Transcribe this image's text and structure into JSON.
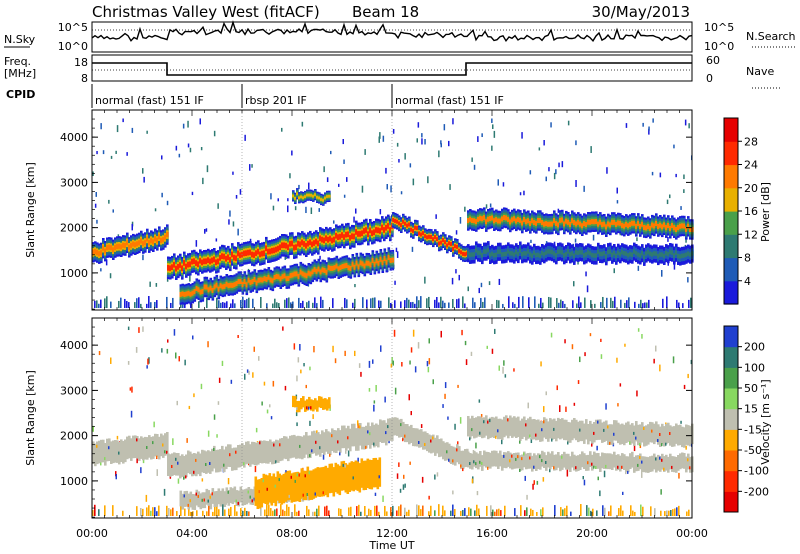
{
  "header": {
    "title": "Christmas Valley West (fitACF)",
    "beam": "Beam 18",
    "date": "30/May/2013"
  },
  "nsky_panel": {
    "left_label": "N.Sky",
    "right_label": "N.Search",
    "left_ticks": [
      "10^5",
      "10^0"
    ],
    "right_ticks": [
      "10^5",
      "10^0"
    ]
  },
  "freq_panel": {
    "left_label_line1": "Freq.",
    "left_label_line2": "[MHz]",
    "right_label": "Nave",
    "left_ticks": [
      "18",
      "8"
    ],
    "right_ticks": [
      "60",
      "0"
    ]
  },
  "cpid_panel": {
    "label": "CPID",
    "modes": [
      {
        "name": "normal (fast) 151 IF",
        "start_hour": 0,
        "end_hour": 6
      },
      {
        "name": "rbsp 201 IF",
        "start_hour": 6,
        "end_hour": 12
      },
      {
        "name": "normal (fast) 151 IF",
        "start_hour": 12,
        "end_hour": 24
      }
    ]
  },
  "chart_data": [
    {
      "type": "heatmap",
      "panel": "power",
      "ylabel": "Slant Range [km]",
      "xlim": [
        0,
        24
      ],
      "ylim": [
        180,
        4600
      ],
      "yticks": [
        "1000",
        "2000",
        "3000",
        "4000"
      ],
      "colorbar_label": "Power [dB]",
      "colorbar_ticks": [
        "4",
        "8",
        "12",
        "16",
        "20",
        "24",
        "28"
      ],
      "colors": [
        "#1a1adb",
        "#1f5bb6",
        "#2e7a72",
        "#4aa04a",
        "#e8b000",
        "#ff7a00",
        "#ff2a00",
        "#e60000"
      ],
      "bands": [
        {
          "t0": 0.0,
          "t1": 3.0,
          "r_start": 1450,
          "r_end": 1800,
          "width": 450,
          "level": 0.7
        },
        {
          "t0": 3.0,
          "t1": 12.0,
          "r_start": 1100,
          "r_end": 2000,
          "width": 500,
          "level": 0.85
        },
        {
          "t0": 3.5,
          "t1": 12.0,
          "r_start": 550,
          "r_end": 1300,
          "width": 450,
          "level": 0.65
        },
        {
          "t0": 8.0,
          "t1": 9.5,
          "r_start": 2700,
          "r_end": 2650,
          "width": 250,
          "level": 0.6
        },
        {
          "t0": 12.0,
          "t1": 15.0,
          "r_start": 2200,
          "r_end": 1400,
          "width": 350,
          "level": 0.8
        },
        {
          "t0": 15.0,
          "t1": 24.0,
          "r_start": 2200,
          "r_end": 2000,
          "width": 450,
          "level": 0.65
        },
        {
          "t0": 15.0,
          "t1": 24.0,
          "r_start": 1450,
          "r_end": 1400,
          "width": 400,
          "level": 0.25
        }
      ]
    },
    {
      "type": "heatmap",
      "panel": "velocity",
      "xlabel": "Time UT",
      "ylabel": "Slant Range [km]",
      "xlim": [
        0,
        24
      ],
      "ylim": [
        180,
        4600
      ],
      "xticks": [
        "00:00",
        "04:00",
        "08:00",
        "12:00",
        "16:00",
        "20:00",
        "00:00"
      ],
      "yticks": [
        "1000",
        "2000",
        "3000",
        "4000"
      ],
      "colorbar_label": "Velocity [m s⁻¹]",
      "colorbar_ticks": [
        "200",
        "100",
        "50",
        "15",
        "-15",
        "-50",
        "-100",
        "-200"
      ],
      "colors": [
        "#2040d0",
        "#2e7a72",
        "#4aa04a",
        "#88d860",
        "#bfbfb0",
        "#ffaa00",
        "#ff6a00",
        "#ff2a00",
        "#e60000"
      ],
      "bands": [
        {
          "t0": 0.0,
          "t1": 3.0,
          "r_start": 1600,
          "r_end": 1800,
          "width": 500,
          "color": "#bfbfb0"
        },
        {
          "t0": 3.0,
          "t1": 12.0,
          "r_start": 1300,
          "r_end": 2100,
          "width": 500,
          "color": "#bfbfb0"
        },
        {
          "t0": 3.5,
          "t1": 9.0,
          "r_start": 550,
          "r_end": 800,
          "width": 350,
          "color": "#bfbfb0"
        },
        {
          "t0": 6.5,
          "t1": 11.5,
          "r_start": 750,
          "r_end": 1200,
          "width": 650,
          "color": "#ffaa00"
        },
        {
          "t0": 12.0,
          "t1": 15.0,
          "r_start": 2200,
          "r_end": 1450,
          "width": 400,
          "color": "#bfbfb0"
        },
        {
          "t0": 15.0,
          "t1": 24.0,
          "r_start": 2200,
          "r_end": 2000,
          "width": 450,
          "color": "#bfbfb0"
        },
        {
          "t0": 15.0,
          "t1": 24.0,
          "r_start": 1450,
          "r_end": 1400,
          "width": 350,
          "color": "#bfbfb0"
        },
        {
          "t0": 8.0,
          "t1": 9.5,
          "r_start": 2700,
          "r_end": 2700,
          "width": 250,
          "color": "#ffaa00"
        }
      ]
    }
  ]
}
